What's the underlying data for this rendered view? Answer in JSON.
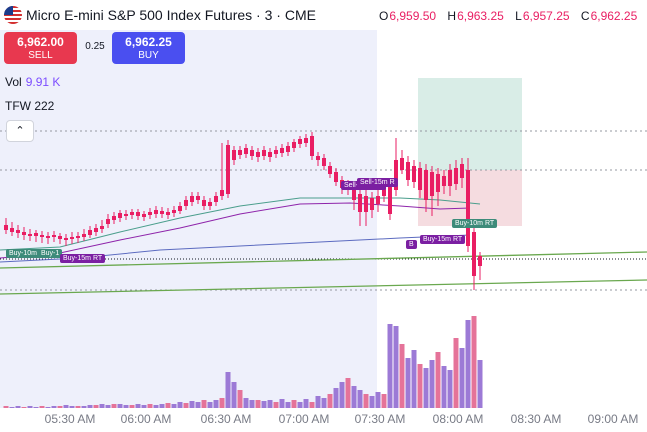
{
  "header": {
    "symbol_title": "Micro E-mini S&P 500 Index Futures · 3 · CME",
    "ohlc": [
      {
        "key": "O",
        "value": "6,959.50"
      },
      {
        "key": "H",
        "value": "6,963.25"
      },
      {
        "key": "L",
        "value": "6,957.25"
      },
      {
        "key": "C",
        "value": "6,962.25"
      }
    ]
  },
  "trade": {
    "sell_price": "6,962.00",
    "sell_label": "SELL",
    "spread": "0.25",
    "buy_price": "6,962.25",
    "buy_label": "BUY"
  },
  "indicators": {
    "vol_label": "Vol",
    "vol_value": "9.91 K",
    "tfw_label": "TFW 222"
  },
  "collapse_icon": "chevron-up-icon",
  "time_axis": [
    "05:30 AM",
    "06:00 AM",
    "06:30 AM",
    "07:00 AM",
    "07:30 AM",
    "08:00 AM",
    "08:30 AM",
    "09:00 AM"
  ],
  "signal_labels": [
    {
      "text": "Buy-10m RT",
      "color": "#3d8b7a"
    },
    {
      "text": "Buy-1",
      "color": "#3d8b7a"
    },
    {
      "text": "Buy-15m RT",
      "color": "#7b1fa2"
    },
    {
      "text": "Sell-15m RT",
      "color": "#7b1fa2"
    },
    {
      "text": "Sell-15m R",
      "color": "#7b1fa2"
    },
    {
      "text": "Buy-10m RT",
      "color": "#3d8b7a"
    },
    {
      "text": "Buy-15m RT",
      "color": "#7b1fa2"
    },
    {
      "text": "B",
      "color": "#7b1fa2"
    }
  ],
  "colors": {
    "up": "#7b1fa2",
    "down": "#e91e63",
    "vol_up": "#9c7ad6",
    "vol_down": "#e57399",
    "session_bg": "#eef0fb",
    "ma_green": "#6aa84f"
  }
}
